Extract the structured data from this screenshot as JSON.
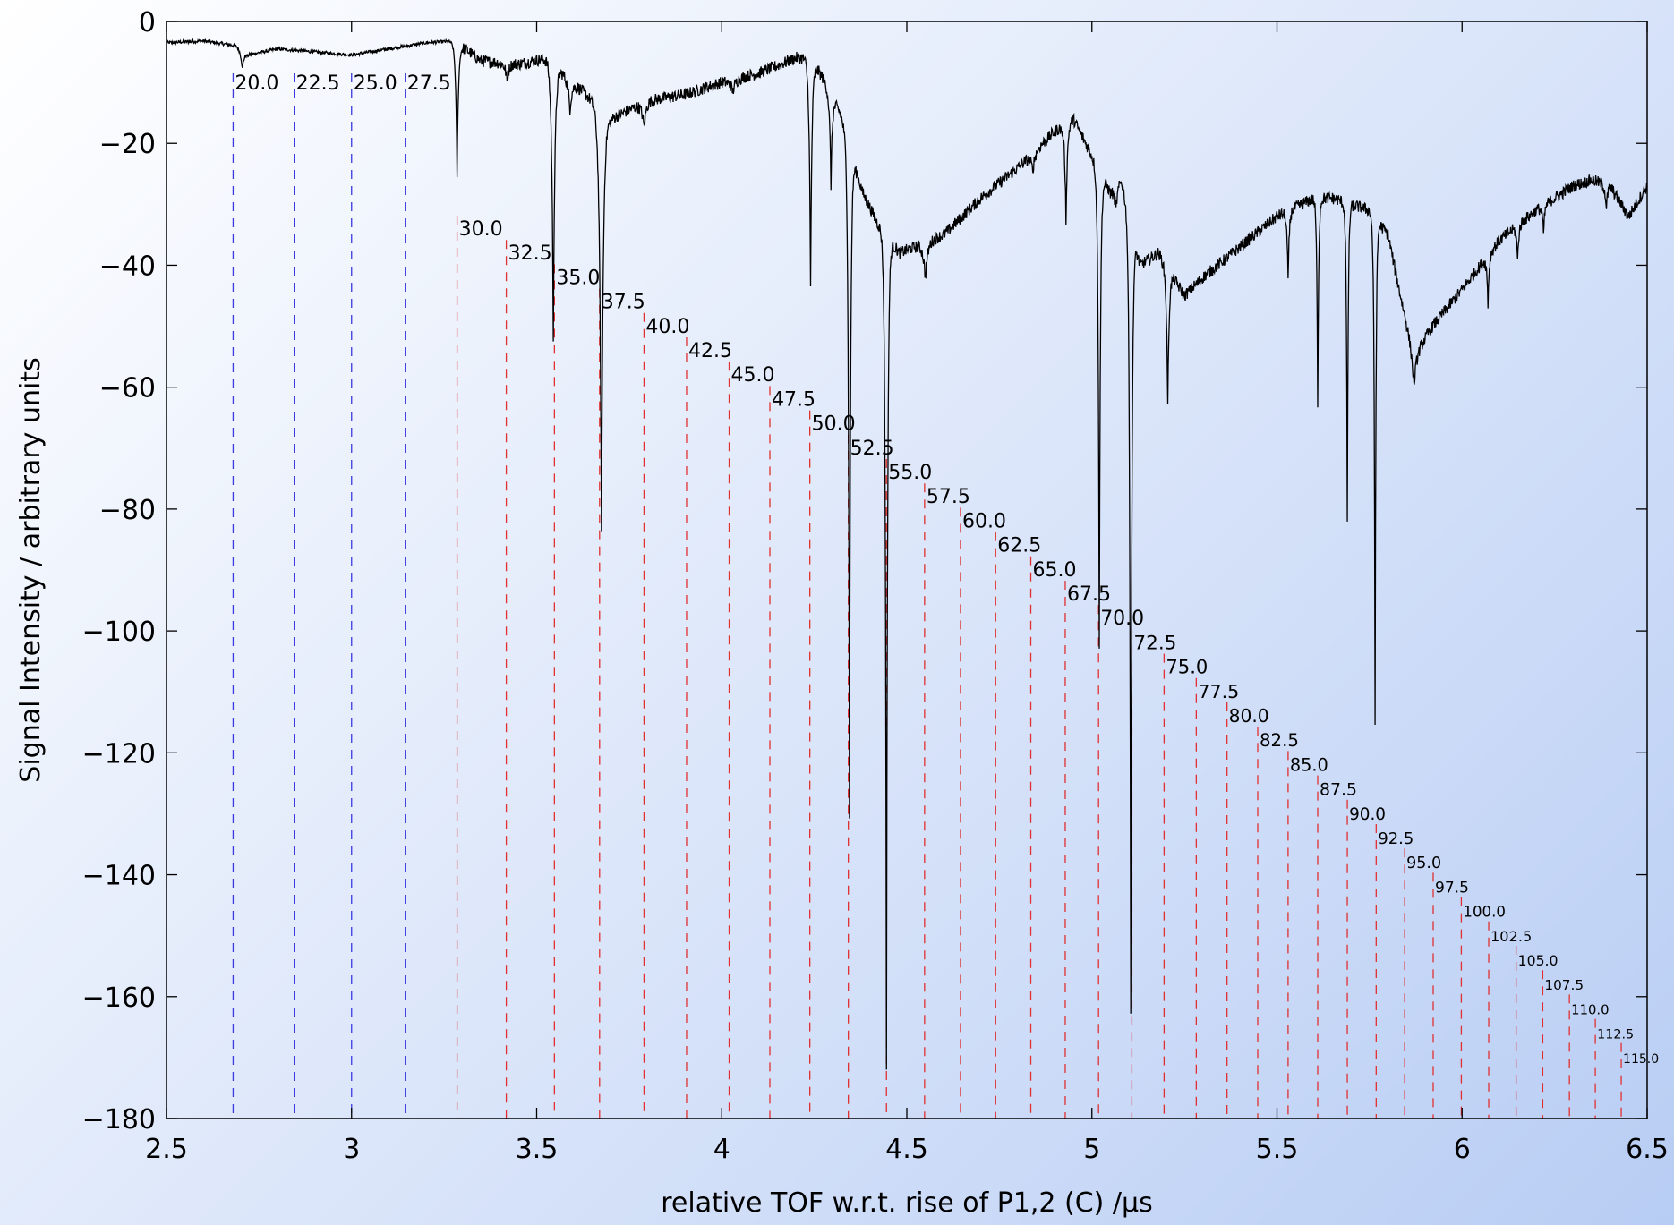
{
  "chart_data": {
    "type": "line",
    "xlabel": "relative TOF w.r.t. rise of P1,2 (C) /μs",
    "ylabel": "Signal Intensity / arbitrary units",
    "xlim": [
      2.5,
      6.5
    ],
    "ylim": [
      -180,
      0
    ],
    "x_ticks": [
      2.5,
      3,
      3.5,
      4,
      4.5,
      5,
      5.5,
      6,
      6.5
    ],
    "x_tick_labels": [
      "2.5",
      "3",
      "3.5",
      "4",
      "4.5",
      "5",
      "5.5",
      "6",
      "6.5"
    ],
    "y_ticks": [
      0,
      -20,
      -40,
      -60,
      -80,
      -100,
      -120,
      -140,
      -160,
      -180
    ],
    "y_tick_labels": [
      "0",
      "−20",
      "−40",
      "−60",
      "−80",
      "−100",
      "−120",
      "−140",
      "−160",
      "−180"
    ],
    "grid": false,
    "line_color": "#000000",
    "marker_colors": {
      "blue": "#3a3ae0",
      "red": "#e03030"
    },
    "signal": {
      "baseline": [
        [
          2.5,
          -3.5
        ],
        [
          2.6,
          -3.2
        ],
        [
          2.69,
          -4.0
        ],
        [
          2.72,
          -5.5
        ],
        [
          2.8,
          -4.5
        ],
        [
          2.9,
          -5.0
        ],
        [
          3.0,
          -5.5
        ],
        [
          3.1,
          -4.5
        ],
        [
          3.2,
          -3.5
        ],
        [
          3.28,
          -3.2
        ],
        [
          3.35,
          -6.5
        ],
        [
          3.45,
          -7.0
        ],
        [
          3.53,
          -6.0
        ],
        [
          3.6,
          -10.0
        ],
        [
          3.7,
          -16.0
        ],
        [
          3.8,
          -13.0
        ],
        [
          3.9,
          -12.0
        ],
        [
          4.0,
          -10.0
        ],
        [
          4.1,
          -8.5
        ],
        [
          4.2,
          -6.0
        ],
        [
          4.24,
          -5.8
        ],
        [
          4.28,
          -10.0
        ],
        [
          4.32,
          -15.0
        ],
        [
          4.38,
          -28.0
        ],
        [
          4.42,
          -33.0
        ],
        [
          4.48,
          -38.0
        ],
        [
          4.6,
          -35.0
        ],
        [
          4.7,
          -29.0
        ],
        [
          4.8,
          -24.0
        ],
        [
          4.9,
          -18.0
        ],
        [
          4.95,
          -16.0
        ],
        [
          5.0,
          -22.0
        ],
        [
          5.05,
          -28.0
        ],
        [
          5.08,
          -26.0
        ],
        [
          5.13,
          -40.0
        ],
        [
          5.18,
          -38.0
        ],
        [
          5.25,
          -45.0
        ],
        [
          5.3,
          -42.0
        ],
        [
          5.4,
          -37.0
        ],
        [
          5.5,
          -32.0
        ],
        [
          5.6,
          -29.0
        ],
        [
          5.65,
          -29.0
        ],
        [
          5.7,
          -30.0
        ],
        [
          5.75,
          -31.0
        ],
        [
          5.8,
          -35.0
        ],
        [
          5.83,
          -44.0
        ],
        [
          5.87,
          -55.0
        ],
        [
          5.92,
          -50.0
        ],
        [
          6.0,
          -44.0
        ],
        [
          6.1,
          -36.0
        ],
        [
          6.2,
          -31.0
        ],
        [
          6.3,
          -27.0
        ],
        [
          6.35,
          -26.0
        ],
        [
          6.4,
          -27.0
        ],
        [
          6.45,
          -32.0
        ],
        [
          6.5,
          -27.0
        ]
      ],
      "dips": [
        {
          "x": 2.705,
          "depth": 3,
          "w": 0.008
        },
        {
          "x": 3.285,
          "depth": 22,
          "w": 0.006
        },
        {
          "x": 3.42,
          "depth": 3,
          "w": 0.008
        },
        {
          "x": 3.545,
          "depth": 45,
          "w": 0.007
        },
        {
          "x": 3.59,
          "depth": 5,
          "w": 0.01
        },
        {
          "x": 3.675,
          "depth": 70,
          "w": 0.008
        },
        {
          "x": 3.79,
          "depth": 4,
          "w": 0.01
        },
        {
          "x": 4.03,
          "depth": 2,
          "w": 0.012
        },
        {
          "x": 4.24,
          "depth": 38,
          "w": 0.006
        },
        {
          "x": 4.295,
          "depth": 15,
          "w": 0.006
        },
        {
          "x": 4.345,
          "depth": 110,
          "w": 0.005
        },
        {
          "x": 4.445,
          "depth": 136,
          "w": 0.005
        },
        {
          "x": 4.55,
          "depth": 6,
          "w": 0.01
        },
        {
          "x": 4.84,
          "depth": 3,
          "w": 0.01
        },
        {
          "x": 4.93,
          "depth": 16,
          "w": 0.006
        },
        {
          "x": 5.02,
          "depth": 78,
          "w": 0.005
        },
        {
          "x": 5.065,
          "depth": 4,
          "w": 0.008
        },
        {
          "x": 5.105,
          "depth": 130,
          "w": 0.005
        },
        {
          "x": 5.205,
          "depth": 23,
          "w": 0.006
        },
        {
          "x": 5.53,
          "depth": 12,
          "w": 0.005
        },
        {
          "x": 5.61,
          "depth": 35,
          "w": 0.004
        },
        {
          "x": 5.69,
          "depth": 53,
          "w": 0.004
        },
        {
          "x": 5.765,
          "depth": 83,
          "w": 0.004
        },
        {
          "x": 5.87,
          "depth": 5,
          "w": 0.01
        },
        {
          "x": 6.07,
          "depth": 8,
          "w": 0.005
        },
        {
          "x": 6.15,
          "depth": 6,
          "w": 0.005
        },
        {
          "x": 6.22,
          "depth": 5,
          "w": 0.005
        },
        {
          "x": 6.39,
          "depth": 4,
          "w": 0.006
        }
      ],
      "noise": 0.45
    },
    "markers": [
      {
        "label": "20.0",
        "x": 2.68,
        "color": "blue"
      },
      {
        "label": "22.5",
        "x": 2.845,
        "color": "blue"
      },
      {
        "label": "25.0",
        "x": 3.0,
        "color": "blue"
      },
      {
        "label": "27.5",
        "x": 3.145,
        "color": "blue"
      },
      {
        "label": "30.0",
        "x": 3.285,
        "color": "red"
      },
      {
        "label": "32.5",
        "x": 3.418,
        "color": "red"
      },
      {
        "label": "35.0",
        "x": 3.548,
        "color": "red"
      },
      {
        "label": "37.5",
        "x": 3.67,
        "color": "red"
      },
      {
        "label": "40.0",
        "x": 3.79,
        "color": "red"
      },
      {
        "label": "42.5",
        "x": 3.905,
        "color": "red"
      },
      {
        "label": "45.0",
        "x": 4.02,
        "color": "red"
      },
      {
        "label": "47.5",
        "x": 4.13,
        "color": "red"
      },
      {
        "label": "50.0",
        "x": 4.238,
        "color": "red"
      },
      {
        "label": "52.5",
        "x": 4.342,
        "color": "red"
      },
      {
        "label": "55.0",
        "x": 4.445,
        "color": "red"
      },
      {
        "label": "57.5",
        "x": 4.548,
        "color": "red"
      },
      {
        "label": "60.0",
        "x": 4.645,
        "color": "red"
      },
      {
        "label": "62.5",
        "x": 4.74,
        "color": "red"
      },
      {
        "label": "65.0",
        "x": 4.835,
        "color": "red"
      },
      {
        "label": "67.5",
        "x": 4.928,
        "color": "red"
      },
      {
        "label": "70.0",
        "x": 5.018,
        "color": "red"
      },
      {
        "label": "72.5",
        "x": 5.108,
        "color": "red"
      },
      {
        "label": "75.0",
        "x": 5.195,
        "color": "red"
      },
      {
        "label": "77.5",
        "x": 5.282,
        "color": "red"
      },
      {
        "label": "80.0",
        "x": 5.365,
        "color": "red"
      },
      {
        "label": "82.5",
        "x": 5.448,
        "color": "red"
      },
      {
        "label": "85.0",
        "x": 5.53,
        "color": "red"
      },
      {
        "label": "87.5",
        "x": 5.61,
        "color": "red"
      },
      {
        "label": "90.0",
        "x": 5.69,
        "color": "red"
      },
      {
        "label": "92.5",
        "x": 5.768,
        "color": "red"
      },
      {
        "label": "95.0",
        "x": 5.845,
        "color": "red"
      },
      {
        "label": "97.5",
        "x": 5.922,
        "color": "red"
      },
      {
        "label": "100.0",
        "x": 5.998,
        "color": "red"
      },
      {
        "label": "102.5",
        "x": 6.072,
        "color": "red"
      },
      {
        "label": "105.0",
        "x": 6.146,
        "color": "red"
      },
      {
        "label": "107.5",
        "x": 6.218,
        "color": "red"
      },
      {
        "label": "110.0",
        "x": 6.29,
        "color": "red"
      },
      {
        "label": "112.5",
        "x": 6.36,
        "color": "red"
      },
      {
        "label": "115.0",
        "x": 6.43,
        "color": "red"
      }
    ]
  }
}
